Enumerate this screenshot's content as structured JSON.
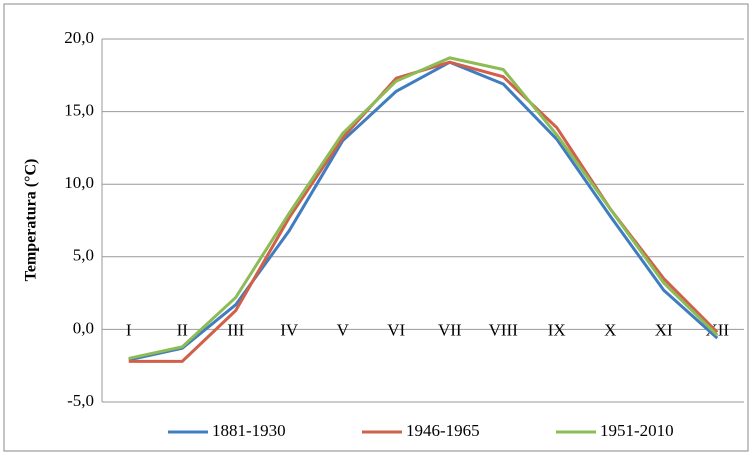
{
  "chart_data": {
    "type": "line",
    "y_label": "Temperatura (°C)",
    "categories": [
      "I",
      "II",
      "III",
      "IV",
      "V",
      "VI",
      "VII",
      "VIII",
      "IX",
      "X",
      "XI",
      "XII"
    ],
    "series": [
      {
        "name": "1881-1930",
        "color": "#3f7dc0",
        "values": [
          -2.1,
          -1.3,
          1.7,
          6.8,
          13.0,
          16.4,
          18.4,
          16.9,
          13.1,
          7.8,
          2.7,
          -0.6
        ]
      },
      {
        "name": "1946-1965",
        "color": "#d0604a",
        "values": [
          -2.2,
          -2.2,
          1.3,
          7.7,
          13.2,
          17.3,
          18.4,
          17.4,
          13.9,
          8.3,
          3.5,
          -0.2
        ]
      },
      {
        "name": "1951-2010",
        "color": "#8dbb55",
        "values": [
          -2.0,
          -1.2,
          2.2,
          8.0,
          13.5,
          17.1,
          18.7,
          17.9,
          13.4,
          8.3,
          3.2,
          -0.4
        ]
      }
    ],
    "ylim": [
      -5,
      20
    ],
    "yticks": [
      {
        "value": -5,
        "label": "-5,0"
      },
      {
        "value": 0,
        "label": "0,0"
      },
      {
        "value": 5,
        "label": "5,0"
      },
      {
        "value": 10,
        "label": "10,0"
      },
      {
        "value": 15,
        "label": "15,0"
      },
      {
        "value": 20,
        "label": "20,0"
      }
    ],
    "grid": true,
    "legend": "bottom"
  }
}
